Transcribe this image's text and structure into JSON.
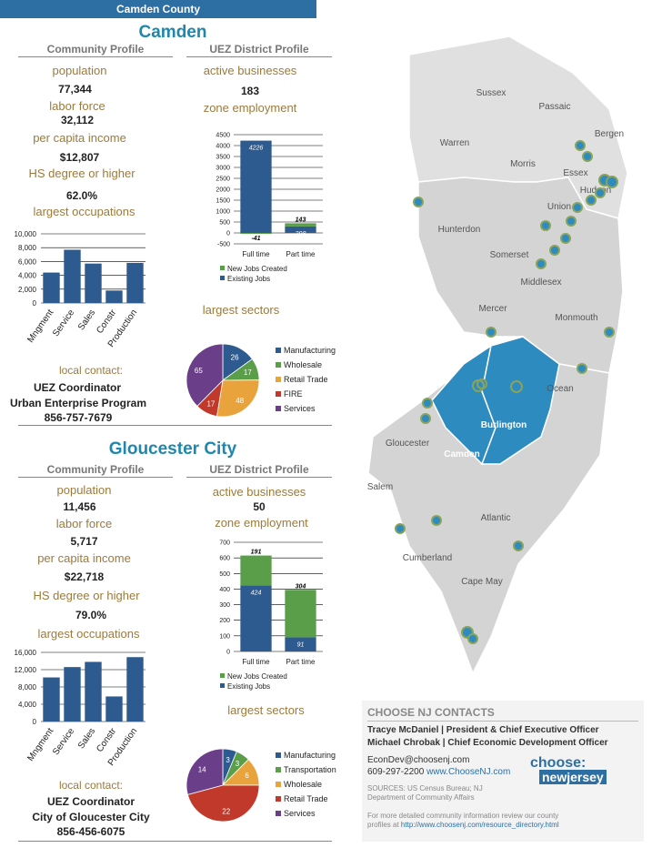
{
  "county_bar": "Camden County",
  "camden": {
    "name": "Camden",
    "community_header": "Community Profile",
    "uez_header": "UEZ District Profile",
    "population_label": "population",
    "population": "77,344",
    "labor_force_label": "labor force",
    "labor_force": "32,112",
    "income_label": "per capita income",
    "income": "$12,807",
    "hs_label": "HS degree or higher",
    "hs": "62.0%",
    "occupations_label": "largest occupations",
    "businesses_label": "active businesses",
    "businesses": "183",
    "employment_label": "zone employment",
    "sectors_label": "largest sectors",
    "contact_label": "local contact:",
    "contact_title": "UEZ Coordinator",
    "contact_org": "Urban Enterprise Program",
    "contact_phone": "856-757-7679"
  },
  "gloucester": {
    "name": "Gloucester City",
    "community_header": "Community Profile",
    "uez_header": "UEZ District Profile",
    "population_label": "population",
    "population": "11,456",
    "labor_force_label": "labor force",
    "labor_force": "5,717",
    "income_label": "per capita income",
    "income": "$22,718",
    "hs_label": "HS degree or higher",
    "hs": "79.0%",
    "occupations_label": "largest occupations",
    "businesses_label": "active businesses",
    "businesses": "50",
    "employment_label": "zone employment",
    "sectors_label": "largest sectors",
    "contact_label": "local contact:",
    "contact_title": "UEZ Coordinator",
    "contact_org": "City of Gloucester City",
    "contact_phone": "856-456-6075"
  },
  "chart_data": [
    {
      "id": "camden-occupations",
      "type": "bar",
      "categories": [
        "Mngment",
        "Service",
        "Sales",
        "Constr",
        "Production"
      ],
      "values": [
        4400,
        7700,
        5700,
        1800,
        5800
      ],
      "ylim": [
        0,
        10000
      ],
      "yticks": [
        "0",
        "2,000",
        "4,000",
        "6,000",
        "8,000",
        "10,000"
      ],
      "color": "#2e5b8f"
    },
    {
      "id": "camden-employment",
      "type": "bar",
      "categories": [
        "Full time",
        "Part time"
      ],
      "series": [
        {
          "name": "New Jobs Created",
          "values": [
            -41,
            143
          ],
          "labels": [
            "-41",
            "143"
          ],
          "color": "#5a9e4a"
        },
        {
          "name": "Existing Jobs",
          "values": [
            4226,
            298
          ],
          "labels": [
            "4226",
            "298"
          ],
          "color": "#2e5b8f"
        }
      ],
      "ylim": [
        -500,
        4500
      ],
      "yticks": [
        "-500",
        "0",
        "500",
        "1000",
        "1500",
        "2000",
        "2500",
        "3000",
        "3500",
        "4000",
        "4500"
      ]
    },
    {
      "id": "camden-sectors",
      "type": "pie",
      "labels": [
        "Manufacturing",
        "Wholesale",
        "Retail Trade",
        "FIRE",
        "Services"
      ],
      "values": [
        26,
        17,
        48,
        17,
        65
      ],
      "colors": [
        "#2e5b8f",
        "#5a9e4a",
        "#e8a33d",
        "#c0392b",
        "#6b3e8a"
      ]
    },
    {
      "id": "gloucester-occupations",
      "type": "bar",
      "categories": [
        "Mngment",
        "Service",
        "Sales",
        "Constr",
        "Production"
      ],
      "values": [
        10200,
        12600,
        13800,
        5800,
        14900
      ],
      "ylim": [
        0,
        16000
      ],
      "yticks": [
        "0",
        "4,000",
        "8,000",
        "12,000",
        "16,000"
      ],
      "color": "#2e5b8f"
    },
    {
      "id": "gloucester-employment",
      "type": "bar",
      "categories": [
        "Full time",
        "Part time"
      ],
      "series": [
        {
          "name": "New Jobs Created",
          "values": [
            191,
            304
          ],
          "labels": [
            "191",
            "304"
          ],
          "color": "#5a9e4a"
        },
        {
          "name": "Existing Jobs",
          "values": [
            424,
            91
          ],
          "labels": [
            "424",
            "91"
          ],
          "color": "#2e5b8f"
        }
      ],
      "ylim": [
        0,
        700
      ],
      "yticks": [
        "0",
        "100",
        "200",
        "300",
        "400",
        "500",
        "600",
        "700"
      ]
    },
    {
      "id": "gloucester-sectors",
      "type": "pie",
      "labels": [
        "Manufacturing",
        "Transportation",
        "Wholesale",
        "Retail Trade",
        "Services"
      ],
      "values": [
        3,
        3,
        6,
        22,
        14
      ],
      "colors": [
        "#2e5b8f",
        "#5a9e4a",
        "#e8a33d",
        "#c0392b",
        "#6b3e8a"
      ]
    }
  ],
  "map": {
    "counties": [
      "Sussex",
      "Passaic",
      "Bergen",
      "Warren",
      "Morris",
      "Essex",
      "Hudson",
      "Union",
      "Hunterdon",
      "Somerset",
      "Middlesex",
      "Mercer",
      "Monmouth",
      "Ocean",
      "Burlington",
      "Camden",
      "Gloucester",
      "Salem",
      "Cumberland",
      "Atlantic",
      "Cape May"
    ],
    "highlight_color": "#2e8bc0"
  },
  "choose_nj": {
    "title": "CHOOSE NJ CONTACTS",
    "contact1": "Tracye McDaniel  | President & Chief Executive Officer",
    "contact2": "Michael Chrobak  | Chief Economic Development Officer",
    "email": "EconDev@choosenj.com",
    "phone": "609-297-2200",
    "web": "www.ChooseNJ.com",
    "sources": "SOURCES:  US  Census  Bureau;  NJ",
    "sources2": "Department of Community Affairs",
    "more": "For more detailed community information review our county",
    "more2": "profiles at",
    "url": "http://www.choosenj.com/resource_directory.html",
    "logo": "choose:",
    "logo2": "newjersey"
  }
}
